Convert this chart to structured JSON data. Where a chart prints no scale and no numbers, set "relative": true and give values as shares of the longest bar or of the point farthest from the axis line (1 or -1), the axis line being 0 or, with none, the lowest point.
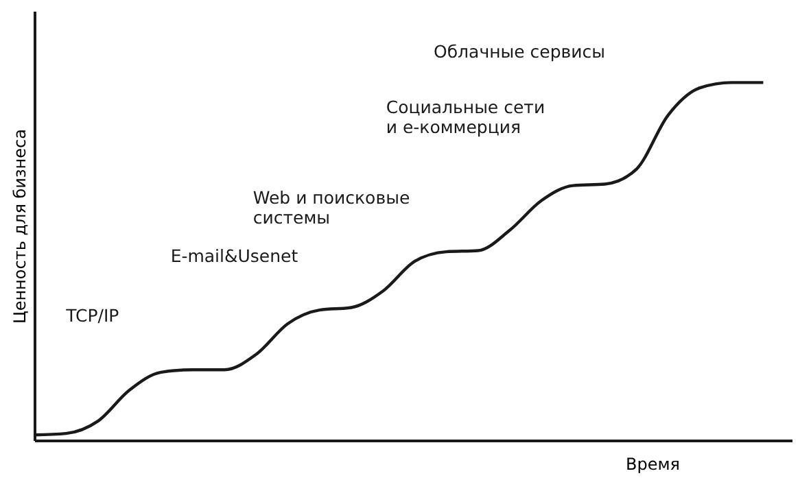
{
  "chart_data": {
    "type": "line",
    "relative": true,
    "xlabel": "Время",
    "ylabel": "Ценность для бизнеса",
    "tick_labels": false,
    "grid": false,
    "marker": "none",
    "line_style": "solid",
    "categories": [
      null,
      null,
      null,
      null,
      null,
      null,
      null,
      null,
      null,
      null,
      null,
      null,
      null,
      null,
      null,
      null,
      null,
      null,
      null,
      null,
      null,
      null,
      null,
      null
    ],
    "series": [
      {
        "color": "#1a1a1a",
        "values": [
          0.015,
          0.019,
          0.053,
          0.14,
          0.19,
          0.197,
          0.197,
          0.24,
          0.326,
          0.364,
          0.371,
          0.417,
          0.5,
          0.527,
          0.53,
          0.587,
          0.67,
          0.712,
          0.716,
          0.758,
          0.909,
          0.985,
          1,
          1
        ]
      }
    ],
    "annotations": [
      "TCP/IP",
      "E-mail&Usenet",
      "Web и поисковые\nсистемы",
      "Социальные сети\nи е-коммерция",
      "Облачные сервисы"
    ]
  }
}
